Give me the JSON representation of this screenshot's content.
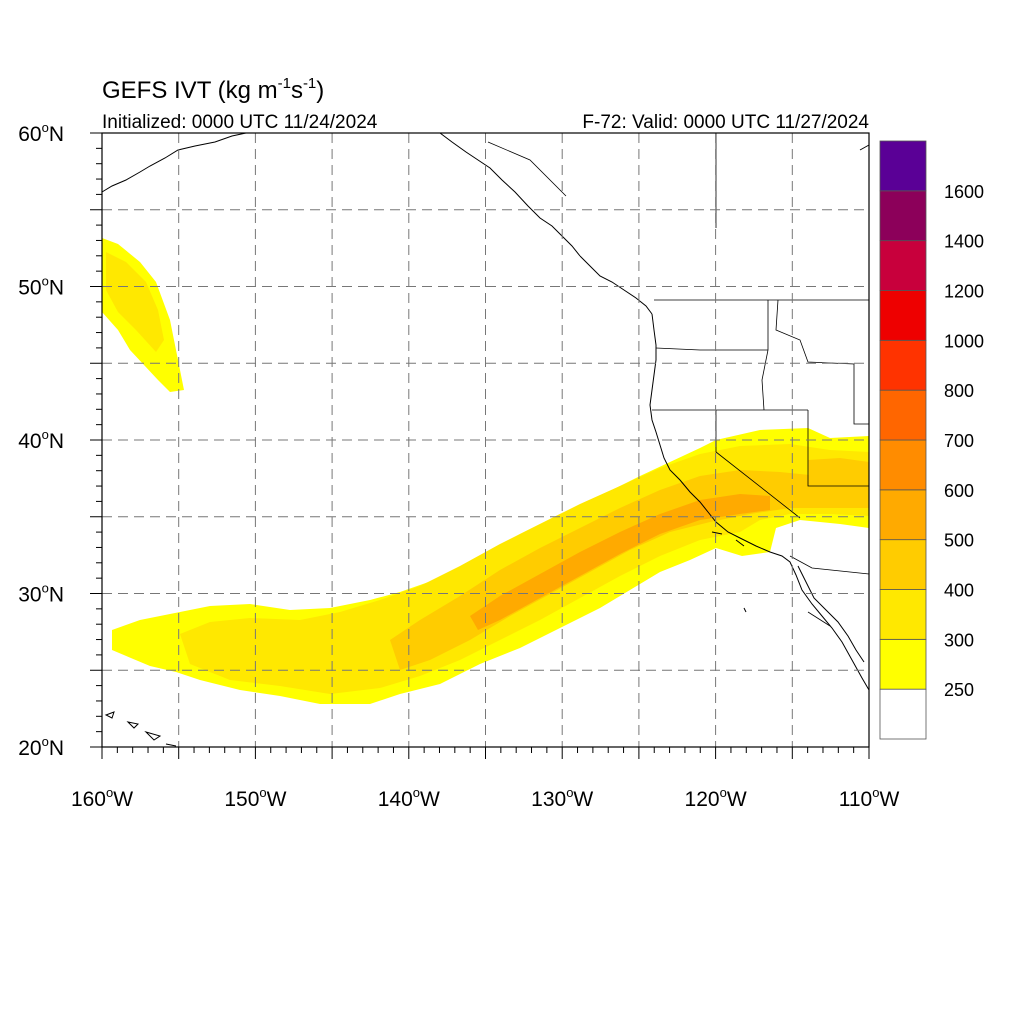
{
  "map": {
    "title_main": "GEFS IVT (kg m",
    "title_exp1": "-1",
    "title_mid": "s",
    "title_exp2": "-1",
    "title_end": ")",
    "initialized": "Initialized: 0000 UTC 11/24/2024",
    "valid": "F-72: Valid: 0000 UTC 11/27/2024",
    "lat_labels": [
      {
        "value": 60,
        "deg": "60",
        "hemi": "N"
      },
      {
        "value": 50,
        "deg": "50",
        "hemi": "N"
      },
      {
        "value": 40,
        "deg": "40",
        "hemi": "N"
      },
      {
        "value": 30,
        "deg": "30",
        "hemi": "N"
      },
      {
        "value": 20,
        "deg": "20",
        "hemi": "N"
      }
    ],
    "lon_labels": [
      {
        "value": -160,
        "deg": "160",
        "hemi": "W"
      },
      {
        "value": -150,
        "deg": "150",
        "hemi": "W"
      },
      {
        "value": -140,
        "deg": "140",
        "hemi": "W"
      },
      {
        "value": -130,
        "deg": "130",
        "hemi": "W"
      },
      {
        "value": -120,
        "deg": "120",
        "hemi": "W"
      },
      {
        "value": -110,
        "deg": "110",
        "hemi": "W"
      }
    ],
    "extent": {
      "lon_min": -160,
      "lon_max": -110,
      "lat_min": 20,
      "lat_max": 60
    },
    "grid_step_deg": 5,
    "grid": "dashed",
    "colorbar": {
      "levels": [
        "250",
        "300",
        "400",
        "500",
        "600",
        "700",
        "800",
        "1000",
        "1200",
        "1400",
        "1600"
      ],
      "colors": [
        "#ffffff",
        "#ffff00",
        "#ffe800",
        "#ffcc00",
        "#ffaa00",
        "#ff8c00",
        "#ff6600",
        "#ff3300",
        "#ee0000",
        "#c8003c",
        "#8c005a",
        "#5a0096"
      ]
    },
    "ivt_field": {
      "units": "kg m-1 s-1",
      "features": [
        {
          "region": "north_pacific_plume",
          "ivt_range": [
            250,
            400
          ]
        },
        {
          "region": "atmospheric_river_core",
          "ivt_range": [
            250,
            600
          ]
        },
        {
          "region": "california_landfall",
          "ivt_range": [
            250,
            600
          ]
        },
        {
          "region": "great_basin",
          "ivt_range": [
            250,
            400
          ]
        }
      ]
    }
  }
}
